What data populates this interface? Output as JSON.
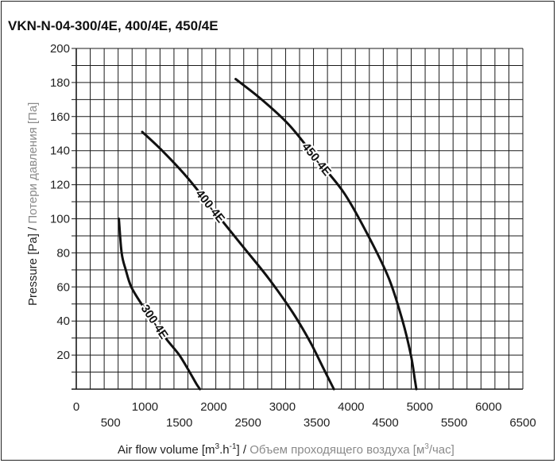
{
  "chart_data": {
    "type": "line",
    "title": "VKN-N-04-300/4E, 400/4E, 450/4E",
    "xlabel": {
      "main": "Air flow volume [m",
      "sup1": "3",
      "mid": ".h",
      "sup2": "-1",
      "end": "] / ",
      "alt": "Объем проходящего воздуха [м",
      "alt_sup": "3",
      "alt_end": "/час]"
    },
    "ylabel": {
      "main": "Pressure [Pa] / ",
      "alt": "Потери давления [Па]"
    },
    "x_ticks": [
      0,
      500,
      1000,
      1500,
      2000,
      2500,
      3000,
      3500,
      4000,
      4500,
      5000,
      5500,
      6000,
      6500
    ],
    "y_ticks": [
      20,
      40,
      60,
      80,
      100,
      120,
      140,
      160,
      180,
      200
    ],
    "xlim": [
      0,
      6500
    ],
    "ylim": [
      0,
      200
    ],
    "grid": true,
    "series": [
      {
        "name": "300-4E",
        "x": [
          620,
          660,
          720,
          800,
          950,
          1100,
          1300,
          1500,
          1650,
          1750,
          1800
        ],
        "y": [
          100,
          80,
          70,
          60,
          50,
          42,
          30,
          20,
          10,
          3,
          0
        ]
      },
      {
        "name": "400-4E",
        "x": [
          960,
          1250,
          1600,
          2000,
          2400,
          2800,
          3150,
          3400,
          3600,
          3750
        ],
        "y": [
          151,
          140,
          125,
          105,
          85,
          65,
          45,
          28,
          12,
          0
        ]
      },
      {
        "name": "450-4E",
        "x": [
          2320,
          2700,
          3100,
          3500,
          3900,
          4250,
          4550,
          4750,
          4870,
          4930,
          4950
        ],
        "y": [
          182,
          170,
          155,
          135,
          115,
          90,
          65,
          40,
          20,
          5,
          0
        ]
      }
    ]
  }
}
